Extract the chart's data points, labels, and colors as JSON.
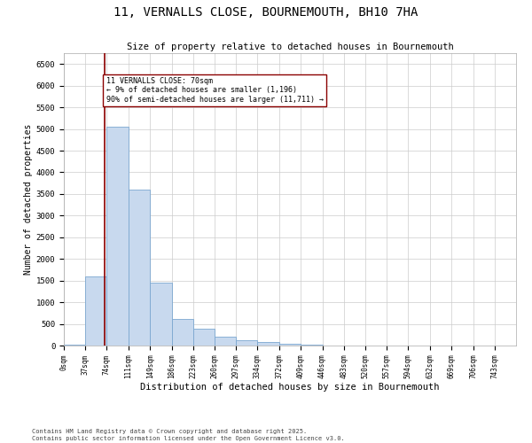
{
  "title": "11, VERNALLS CLOSE, BOURNEMOUTH, BH10 7HA",
  "subtitle": "Size of property relative to detached houses in Bournemouth",
  "xlabel": "Distribution of detached houses by size in Bournemouth",
  "ylabel": "Number of detached properties",
  "footer1": "Contains HM Land Registry data © Crown copyright and database right 2025.",
  "footer2": "Contains public sector information licensed under the Open Government Licence v3.0.",
  "annotation_line1": "11 VERNALLS CLOSE: 70sqm",
  "annotation_line2": "← 9% of detached houses are smaller (1,196)",
  "annotation_line3": "90% of semi-detached houses are larger (11,711) →",
  "bar_color": "#c8d9ee",
  "bar_edge_color": "#7ba7d0",
  "marker_line_color": "#8b0000",
  "marker_value": 70,
  "bin_starts": [
    0,
    37,
    74,
    111,
    149,
    186,
    223,
    260,
    297,
    334,
    372,
    409,
    446,
    483,
    520,
    557,
    594,
    632,
    669,
    706
  ],
  "bin_width": 37,
  "bar_heights": [
    25,
    1600,
    5050,
    3600,
    1450,
    620,
    380,
    200,
    130,
    80,
    40,
    20,
    10,
    5,
    3,
    2,
    1,
    1,
    1,
    1
  ],
  "ylim": [
    0,
    6750
  ],
  "yticks": [
    0,
    500,
    1000,
    1500,
    2000,
    2500,
    3000,
    3500,
    4000,
    4500,
    5000,
    5500,
    6000,
    6500
  ],
  "xlim_max": 780,
  "background_color": "#ffffff",
  "grid_color": "#cccccc",
  "tick_labels": [
    "0sqm",
    "37sqm",
    "74sqm",
    "111sqm",
    "149sqm",
    "186sqm",
    "223sqm",
    "260sqm",
    "297sqm",
    "334sqm",
    "372sqm",
    "409sqm",
    "446sqm",
    "483sqm",
    "520sqm",
    "557sqm",
    "594sqm",
    "632sqm",
    "669sqm",
    "706sqm",
    "743sqm"
  ]
}
